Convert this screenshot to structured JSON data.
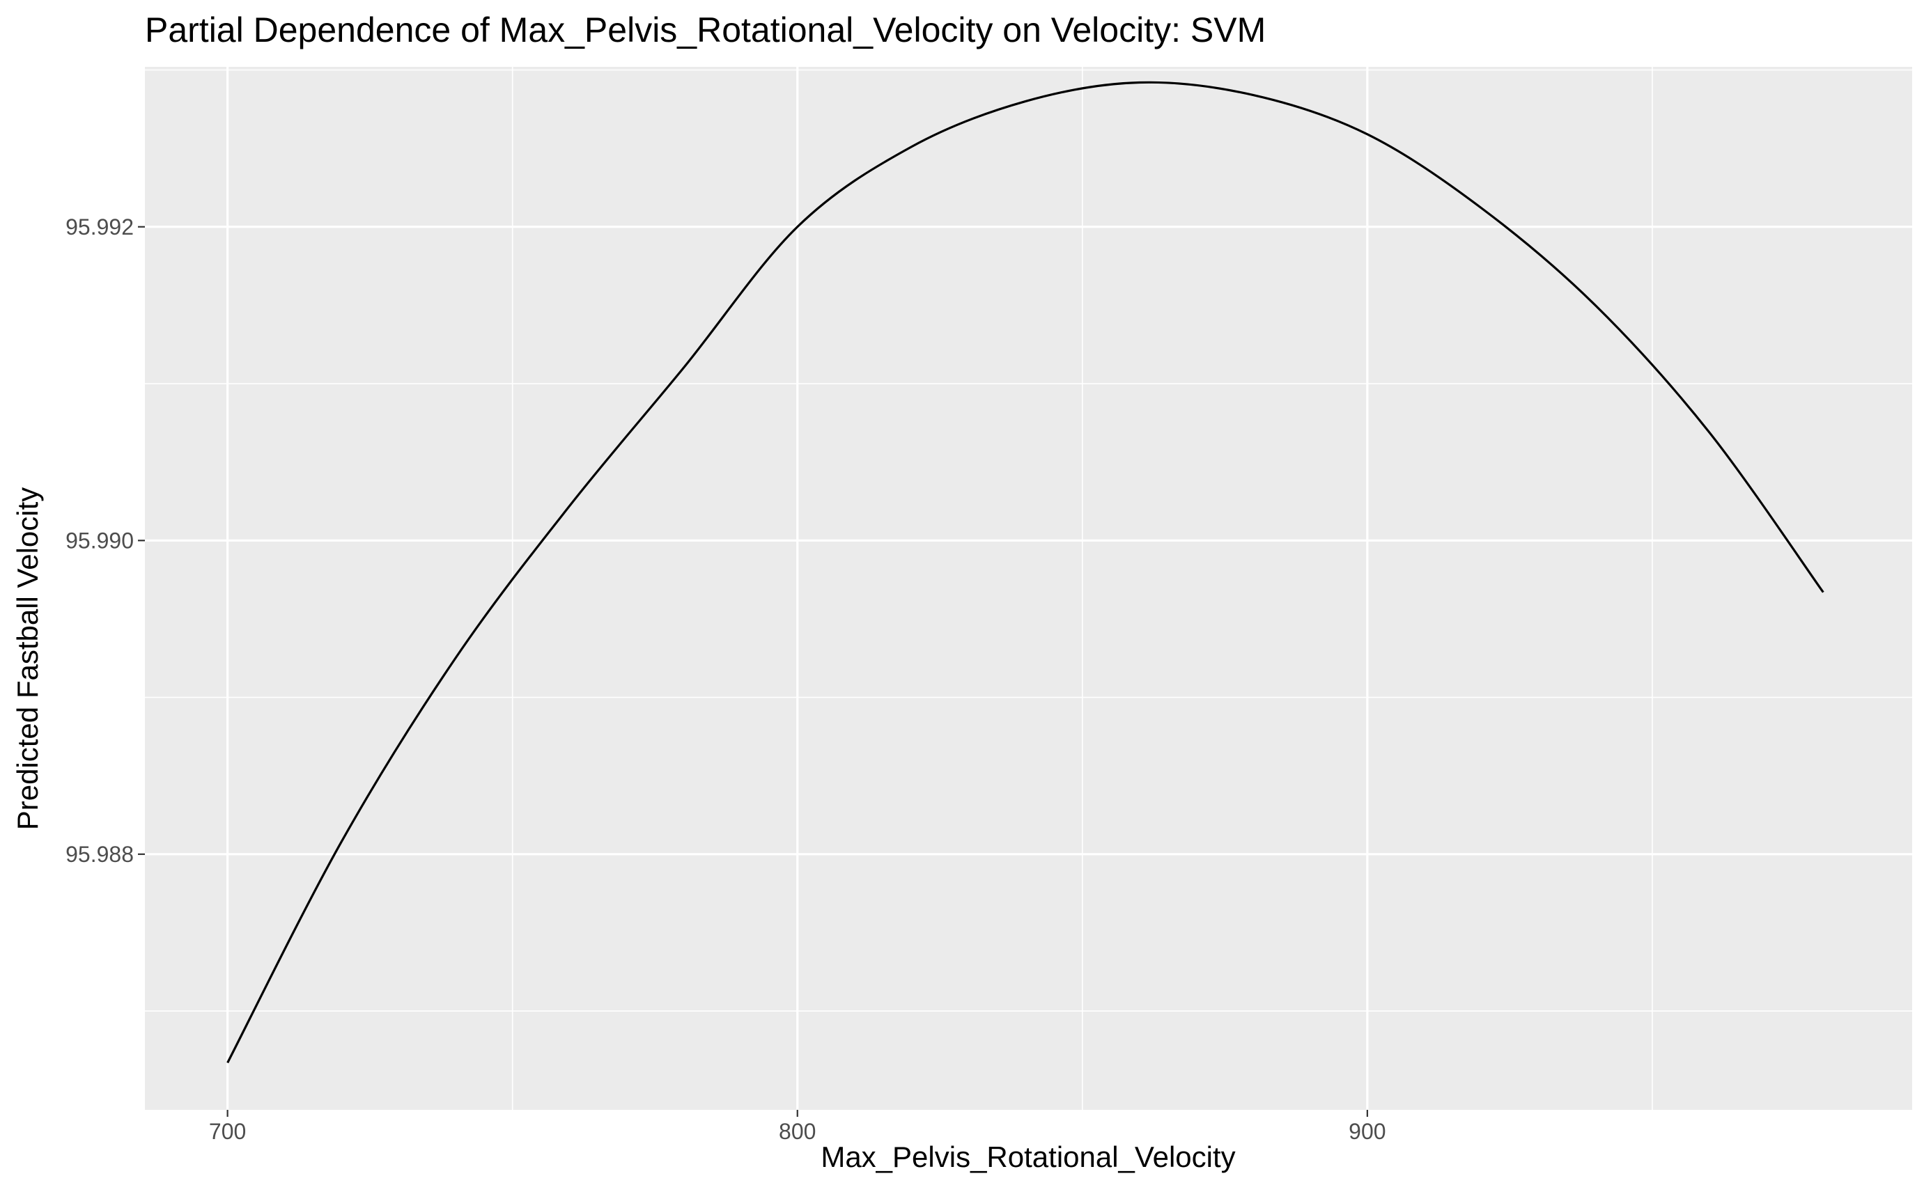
{
  "chart_data": {
    "type": "line",
    "title": "Partial Dependence of Max_Pelvis_Rotational_Velocity on Velocity: SVM",
    "xlabel": "Max_Pelvis_Rotational_Velocity",
    "ylabel": "Predicted Fastball Velocity",
    "xlim": [
      685.5,
      995.6
    ],
    "ylim": [
      95.98637,
      95.99302
    ],
    "x_ticks": [
      700,
      800,
      900
    ],
    "x_tick_labels": [
      "700",
      "800",
      "900"
    ],
    "y_ticks": [
      95.988,
      95.99,
      95.992
    ],
    "y_tick_labels": [
      "95.988",
      "95.990",
      "95.992"
    ],
    "grid": true,
    "background_color": "#ebebeb",
    "grid_color": "#ffffff",
    "line_color": "#000000",
    "series": [
      {
        "points": [
          [
            700,
            95.98667
          ],
          [
            720,
            95.98808
          ],
          [
            740,
            95.98925
          ],
          [
            760,
            95.99022
          ],
          [
            780,
            95.9911
          ],
          [
            800,
            95.992
          ],
          [
            820,
            95.99251
          ],
          [
            840,
            95.9928
          ],
          [
            860,
            95.99292
          ],
          [
            880,
            95.99284
          ],
          [
            900,
            95.99259
          ],
          [
            920,
            95.99212
          ],
          [
            940,
            95.9915
          ],
          [
            960,
            95.99069
          ],
          [
            980,
            95.98967
          ]
        ]
      }
    ]
  }
}
